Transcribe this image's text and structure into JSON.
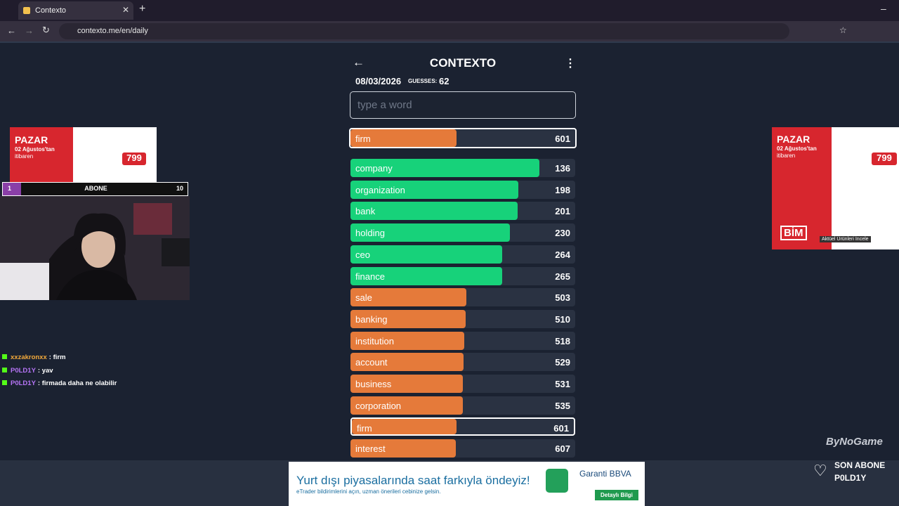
{
  "browser": {
    "tab_title": "Contexto",
    "url": "contexto.me/en/daily"
  },
  "game": {
    "title": "CONTEXTO",
    "date": "08/03/2026",
    "guesses_label": "GUESSES:",
    "guesses_count": 62,
    "input_placeholder": "type a word",
    "last_guess": {
      "word": "firm",
      "rank": 601,
      "color": "#e57a3a"
    },
    "guesses": [
      {
        "word": "company",
        "rank": 136,
        "color": "#17d27a"
      },
      {
        "word": "organization",
        "rank": 198,
        "color": "#17d27a"
      },
      {
        "word": "bank",
        "rank": 201,
        "color": "#17d27a"
      },
      {
        "word": "holding",
        "rank": 230,
        "color": "#17d27a"
      },
      {
        "word": "ceo",
        "rank": 264,
        "color": "#17d27a"
      },
      {
        "word": "finance",
        "rank": 265,
        "color": "#17d27a"
      },
      {
        "word": "sale",
        "rank": 503,
        "color": "#e57a3a"
      },
      {
        "word": "banking",
        "rank": 510,
        "color": "#e57a3a"
      },
      {
        "word": "institution",
        "rank": 518,
        "color": "#e57a3a"
      },
      {
        "word": "account",
        "rank": 529,
        "color": "#e57a3a"
      },
      {
        "word": "business",
        "rank": 531,
        "color": "#e57a3a"
      },
      {
        "word": "corporation",
        "rank": 535,
        "color": "#e57a3a"
      },
      {
        "word": "firm",
        "rank": 601,
        "color": "#e57a3a"
      },
      {
        "word": "interest",
        "rank": 607,
        "color": "#e57a3a"
      }
    ]
  },
  "overlay": {
    "left_ad": {
      "day": "PAZAR",
      "date": "02 Ağustos'tan",
      "since": "itibaren",
      "price": "799"
    },
    "subgoal": {
      "current": 1,
      "label": "ABONE",
      "target": 10
    },
    "chat": [
      {
        "user": "xxzakronxx",
        "text": ": firm",
        "color": "#f2a93b"
      },
      {
        "user": "P0LD1Y",
        "text": ": yav",
        "color": "#b574f5"
      },
      {
        "user": "P0LD1Y",
        "text": ": firmada daha ne olabilir",
        "color": "#b574f5"
      }
    ],
    "right_ad": {
      "day": "PAZAR",
      "date": "02 Ağustos'tan",
      "since": "itibaren",
      "price": "799",
      "brand": "BİM",
      "button": "Aktüel Ürünleri İncele"
    },
    "bottom_ad": {
      "headline": "Yurt dışı piyasalarında saat farkıyla öndeyiz!",
      "subline": "eTrader bildirimlerini açın, uzman önerileri cebinize gelsin.",
      "brand": "Garanti BBVA",
      "button": "Detaylı Bilgi"
    },
    "watermark": "ByNoGame",
    "last_sub": {
      "label": "SON ABONE",
      "name": "P0LD1Y"
    }
  }
}
